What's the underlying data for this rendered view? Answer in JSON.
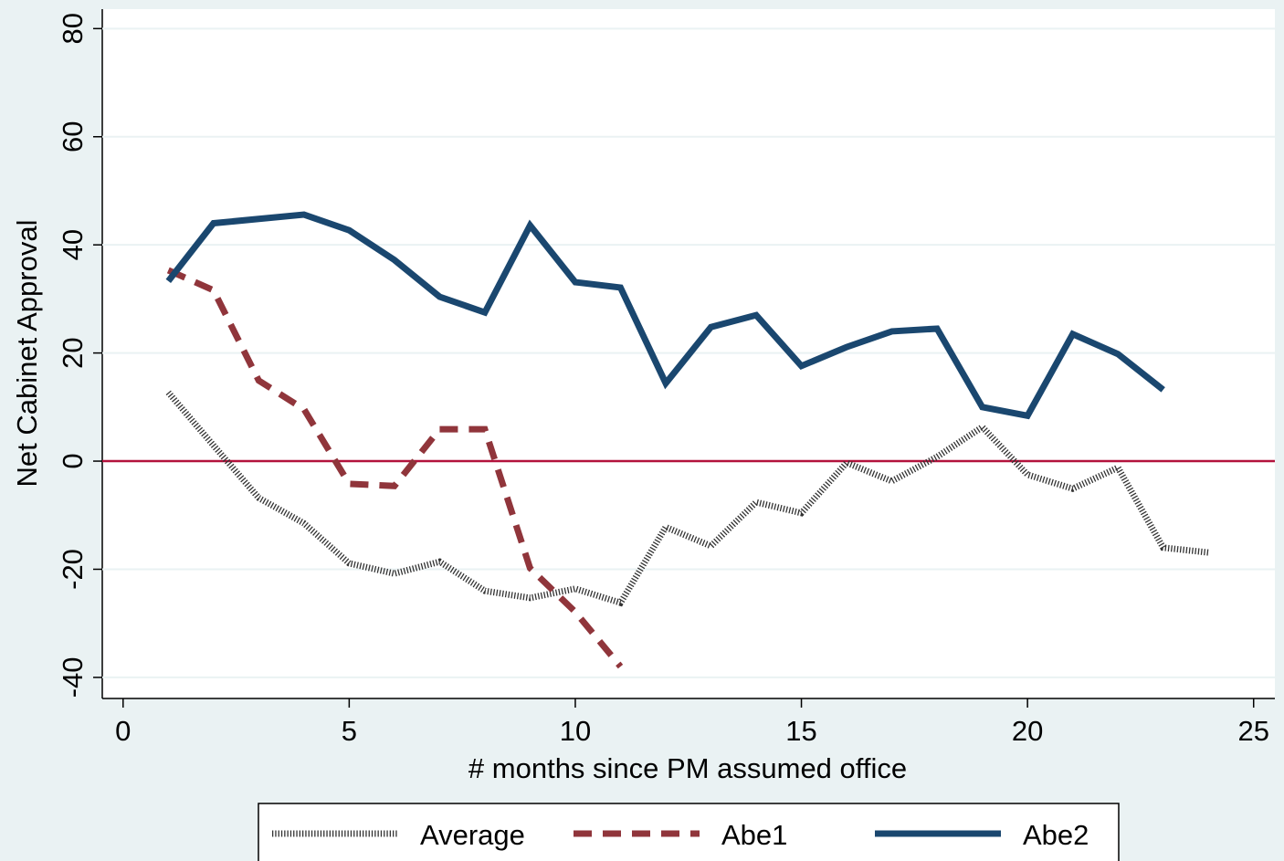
{
  "chart_data": {
    "type": "line",
    "xlabel": "# months since PM assumed office",
    "ylabel": "Net Cabinet Approval",
    "xlim": [
      -0.46,
      25.47
    ],
    "ylim": [
      -43.9,
      83.6
    ],
    "xticks": [
      0,
      5,
      10,
      15,
      20,
      25
    ],
    "yticks": [
      -40,
      -20,
      0,
      20,
      40,
      60,
      80
    ],
    "grid": true,
    "yline": 0,
    "yline_color": "#b3123c",
    "legend": "bottom",
    "series": [
      {
        "name": "Average",
        "color": "#333333",
        "style": "hatched",
        "x": [
          1,
          2,
          3,
          4,
          5,
          6,
          7,
          8,
          9,
          10,
          11,
          12,
          13,
          14,
          15,
          16,
          17,
          18,
          19,
          20,
          21,
          22,
          23,
          24
        ],
        "values": [
          12.7,
          2.9,
          -6.8,
          -11.5,
          -18.9,
          -20.8,
          -18.6,
          -24,
          -25.3,
          -23.6,
          -26.2,
          -12.2,
          -15.7,
          -7.6,
          -9.6,
          -0.3,
          -3.7,
          0.8,
          6.3,
          -2.5,
          -5.1,
          -1.2,
          -16,
          -16.9
        ]
      },
      {
        "name": "Abe1",
        "color": "#90353b",
        "style": "dashed",
        "x": [
          1,
          2,
          3,
          4,
          5,
          6,
          7,
          8,
          9,
          10,
          11
        ],
        "values": [
          35.3,
          31.6,
          14.9,
          9.6,
          -4.2,
          -4.6,
          5.9,
          5.9,
          -19.8,
          -27.9,
          -38
        ]
      },
      {
        "name": "Abe2",
        "color": "#1a476f",
        "style": "solid",
        "x": [
          1,
          2,
          3,
          4,
          5,
          6,
          7,
          8,
          9,
          10,
          11,
          12,
          13,
          14,
          15,
          16,
          17,
          18,
          19,
          20,
          21,
          22,
          23
        ],
        "values": [
          33.3,
          44,
          44.8,
          45.6,
          42.7,
          37.2,
          30.4,
          27.5,
          43.6,
          33.1,
          32.1,
          14.4,
          24.8,
          27,
          17.6,
          21.1,
          24,
          24.5,
          10,
          8.4,
          23.5,
          19.8,
          13.2
        ]
      }
    ]
  }
}
